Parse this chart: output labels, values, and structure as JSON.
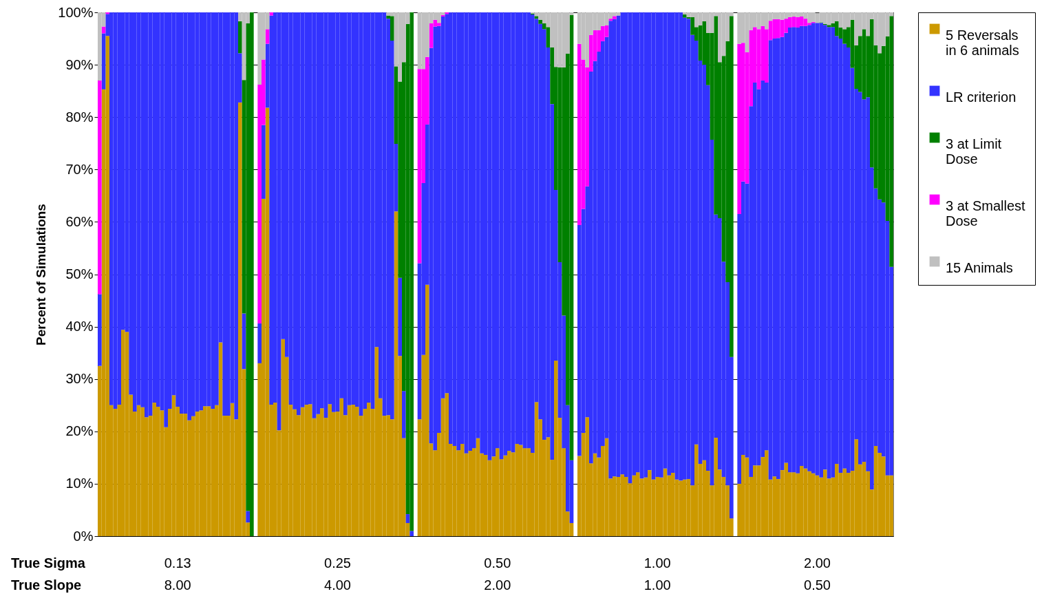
{
  "chart_data": {
    "type": "bar",
    "stacked": true,
    "ylabel": "Percent of Simulations",
    "categories": [
      null,
      null,
      null,
      null,
      null,
      null,
      null,
      null,
      null,
      null,
      null,
      null,
      null,
      null,
      null,
      null,
      null,
      null,
      null,
      null,
      null,
      null,
      null,
      null,
      null,
      null,
      null,
      null,
      null,
      null,
      null,
      null,
      null,
      null,
      null,
      null,
      null,
      null,
      null,
      null,
      null,
      null,
      null,
      null,
      null,
      null,
      null,
      null,
      null,
      null,
      null,
      null,
      null,
      null,
      null,
      null,
      null,
      null,
      null,
      null,
      null,
      null,
      null,
      null,
      null,
      null,
      null,
      null,
      null,
      null,
      null,
      null,
      null,
      null,
      null,
      null,
      null,
      null,
      null,
      null,
      null,
      null,
      null,
      null,
      null,
      null,
      null,
      null,
      null,
      null,
      null,
      null,
      null,
      null,
      null,
      null,
      null,
      null,
      null,
      null,
      null,
      null,
      null,
      null,
      null,
      null,
      null,
      null,
      null,
      null,
      null,
      null,
      null,
      null,
      null,
      null,
      null,
      null,
      null,
      null,
      null,
      null,
      null,
      null,
      null,
      null,
      null,
      null,
      null,
      null,
      null,
      null,
      null,
      null,
      null,
      null,
      null,
      null,
      null,
      null,
      null,
      null,
      null,
      null,
      null,
      null,
      null,
      null,
      null,
      null,
      null,
      null,
      null,
      null,
      null,
      null,
      null,
      null,
      null,
      null,
      null,
      null,
      null,
      null,
      null,
      null,
      null,
      null,
      null,
      null,
      null,
      null,
      null,
      null,
      null,
      null,
      null,
      null,
      null,
      null,
      null,
      null,
      null,
      null,
      null,
      null,
      null,
      null,
      null,
      null,
      null,
      null,
      null,
      null,
      null,
      null,
      null,
      null,
      null,
      null,
      null,
      null,
      null,
      null
    ],
    "series": [
      {
        "name": "5 Reversals in 6 animals",
        "color": "#cc9900",
        "values": [
          32.5,
          85.3,
          95.5,
          25,
          24.3,
          25.1,
          39.4,
          39,
          27,
          23.8,
          25,
          24.6,
          22.7,
          23,
          25.5,
          24.7,
          24,
          20.8,
          24.3,
          26.9,
          24.7,
          23.4,
          23.4,
          22.1,
          22.9,
          23.8,
          24,
          24.8,
          24.8,
          24.3,
          25,
          37,
          23,
          23,
          25.4,
          22.3,
          82.8,
          31.9,
          2.6,
          0,
          null,
          33,
          64.4,
          81.8,
          25.1,
          25.5,
          20.2,
          37.6,
          34.2,
          25.1,
          24.2,
          23.1,
          24.6,
          25.1,
          25.2,
          22.5,
          23.3,
          24.4,
          22.6,
          25.2,
          23.7,
          23.8,
          26.3,
          23.1,
          25,
          25.1,
          24.7,
          23,
          24.3,
          25.5,
          24.3,
          36.1,
          26.3,
          23,
          23.1,
          22.3,
          62,
          34.4,
          18.7,
          2.5,
          0,
          null,
          22.3,
          34.6,
          48,
          17.7,
          16.4,
          19.7,
          26.3,
          27.3,
          17.6,
          17.2,
          16.4,
          17.6,
          15.8,
          16.3,
          16.8,
          18.7,
          15.8,
          15.5,
          14.5,
          15.2,
          16.8,
          14.7,
          15.4,
          16.3,
          16,
          17.6,
          17.4,
          16.8,
          16.8,
          15.9,
          25.6,
          22.3,
          18.4,
          18.9,
          14.6,
          33.5,
          22.6,
          16.8,
          4.7,
          2.5,
          null,
          15.3,
          19.7,
          22.7,
          13.9,
          15.8,
          15,
          17.2,
          18.7,
          11,
          11.4,
          11.3,
          11.8,
          11.3,
          10.1,
          11.6,
          12.2,
          11,
          11.2,
          12.6,
          10.8,
          11.3,
          11.2,
          12.9,
          11.6,
          12.1,
          10.8,
          10.6,
          10.8,
          10.9,
          9.7,
          17.5,
          13.8,
          14.5,
          12.5,
          9.7,
          18.8,
          12.7,
          11.3,
          9.7,
          3.4,
          null,
          10,
          15.5,
          15,
          11.3,
          13.5,
          13.5,
          15.1,
          16.4,
          10.8,
          11.4,
          10.9,
          12.6,
          14,
          12.2,
          12.2,
          12,
          13.4,
          12.9,
          12.4,
          12,
          11.6,
          11.2,
          12.7,
          11,
          11.2,
          13.8,
          12.1,
          12.9,
          12.1,
          12.5,
          18.5,
          13.7,
          14.2,
          12.4,
          8.9,
          17.2,
          15.9,
          15.2,
          11.6,
          11.6
        ]
      },
      {
        "name": "LR criterion",
        "color": "#3333ff",
        "values": [
          13.7,
          10.7,
          4.2,
          75,
          75.7,
          74.9,
          60.6,
          61,
          73,
          76.2,
          75,
          75.4,
          77.3,
          77,
          74.5,
          75.3,
          76,
          79.2,
          75.7,
          73.1,
          75.3,
          76.6,
          76.6,
          77.9,
          77.1,
          76.2,
          76,
          75.2,
          75.2,
          75.7,
          75,
          63,
          77,
          77,
          74.6,
          77.7,
          9.4,
          10.6,
          2.2,
          0,
          null,
          7.6,
          14.1,
          12.2,
          74.3,
          74.5,
          79.8,
          62.4,
          65.8,
          74.9,
          75.8,
          76.9,
          75.4,
          74.9,
          74.8,
          77.5,
          76.7,
          75.6,
          77.4,
          74.8,
          76.3,
          76.2,
          73.7,
          76.9,
          75,
          74.9,
          75.3,
          77,
          75.7,
          74.5,
          75.7,
          63.9,
          73.7,
          77,
          75.7,
          72.3,
          12.9,
          14.9,
          9,
          1.7,
          1,
          null,
          29.8,
          32.8,
          30.6,
          75.5,
          80.9,
          77.7,
          72.9,
          72.4,
          82.4,
          82.8,
          83.6,
          82.4,
          84.2,
          83.7,
          83.2,
          81.3,
          84.2,
          84.5,
          85.5,
          84.8,
          83.2,
          85.3,
          84.6,
          83.7,
          84,
          82.4,
          82.6,
          83.2,
          83.2,
          83.7,
          73.2,
          75.5,
          78.4,
          74.4,
          67.9,
          32.6,
          29.7,
          25.3,
          20.3,
          12,
          null,
          44.1,
          42.8,
          44.1,
          74.8,
          74.9,
          77.5,
          77.3,
          76.6,
          87.4,
          87.3,
          88.1,
          88.2,
          88.7,
          89.9,
          88.4,
          87.8,
          89,
          88.8,
          87.4,
          89.2,
          88.7,
          88.8,
          87.1,
          88.4,
          87.9,
          89.2,
          89.4,
          88.2,
          87.9,
          86,
          77.1,
          77,
          75.5,
          73.6,
          66,
          42.6,
          48,
          41.1,
          38.8,
          30.8,
          null,
          51.5,
          52.2,
          52.3,
          70.8,
          73.1,
          71.8,
          71.9,
          70.2,
          83.9,
          83.6,
          84.2,
          82.7,
          82.1,
          84.9,
          85,
          85.1,
          84,
          84.5,
          85.2,
          86,
          86.4,
          86.8,
          84.9,
          86.2,
          86,
          81.7,
          82.9,
          81.1,
          81.2,
          76.9,
          66.9,
          71.1,
          69.2,
          71.4,
          61.5,
          49.2,
          48.4,
          48.5,
          48.6,
          39.8
        ]
      },
      {
        "name": "3 at Limit Dose",
        "color": "#008000",
        "values": [
          0,
          0,
          0,
          0,
          0,
          0,
          0,
          0,
          0,
          0,
          0,
          0,
          0,
          0,
          0,
          0,
          0,
          0,
          0,
          0,
          0,
          0,
          0,
          0,
          0,
          0,
          0,
          0,
          0,
          0,
          0,
          0,
          0,
          0,
          0,
          0,
          6.1,
          44.6,
          93.1,
          100,
          null,
          0,
          0,
          0,
          0,
          0,
          0,
          0,
          0,
          0,
          0,
          0,
          0,
          0,
          0,
          0,
          0,
          0,
          0,
          0,
          0,
          0,
          0,
          0,
          0,
          0,
          0,
          0,
          0,
          0,
          0,
          0,
          0,
          0,
          0.6,
          4.7,
          14.8,
          37.5,
          62.8,
          93.6,
          99,
          null,
          0,
          0,
          0,
          0,
          0,
          0,
          0,
          0,
          0,
          0,
          0,
          0,
          0,
          0,
          0,
          0,
          0,
          0,
          0,
          0,
          0,
          0,
          0,
          0,
          0,
          0,
          0,
          0,
          0,
          0.2,
          0.5,
          0.8,
          1.1,
          3.9,
          10.8,
          23.5,
          37.2,
          47.4,
          67.1,
          85,
          null,
          0,
          0,
          0,
          0,
          0,
          0,
          0,
          0,
          0,
          0,
          0,
          0,
          0,
          0,
          0,
          0,
          0,
          0,
          0,
          0,
          0,
          0,
          0,
          0,
          0,
          0,
          0,
          0.6,
          0.3,
          3.4,
          2.6,
          6.7,
          8.3,
          10,
          20.4,
          37.9,
          29.8,
          39.3,
          46,
          65.1,
          null,
          0,
          0,
          0,
          0,
          0,
          0,
          0,
          0,
          0,
          0,
          0,
          0,
          0,
          0,
          0,
          0,
          0,
          0,
          0,
          0,
          null,
          0.1,
          0.2,
          0.4,
          0.7,
          2.8,
          2.1,
          2.8,
          3.9,
          9.2,
          8.3,
          10.7,
          13.4,
          11.7,
          28.3,
          27.3,
          27.9,
          29.9,
          35.2,
          47.9
        ]
      },
      {
        "name": "3 at Smallest Dose",
        "color": "#ff00ff",
        "values": [
          40.8,
          1.3,
          0.3,
          0,
          0,
          0,
          0,
          0,
          0,
          0,
          0,
          0,
          0,
          0,
          0,
          0,
          0,
          0,
          0,
          0,
          0,
          0,
          0,
          0,
          0,
          0,
          0,
          0,
          0,
          0,
          0,
          0,
          0,
          0,
          0,
          0,
          0,
          0,
          0,
          0,
          null,
          45.6,
          12.5,
          2.8,
          0.6,
          0,
          0,
          0,
          0,
          0,
          0,
          0,
          0,
          0,
          0,
          0,
          0,
          0,
          0,
          0,
          0,
          0,
          0,
          0,
          0,
          0,
          0,
          0,
          0,
          0,
          0,
          0,
          0,
          0,
          0,
          0,
          0,
          0,
          0,
          0,
          0,
          null,
          37.1,
          21.8,
          12.9,
          4.7,
          1.3,
          0.6,
          0.3,
          0.3,
          0,
          0,
          0,
          0,
          0,
          0,
          0,
          0,
          0,
          0,
          0,
          0,
          0,
          0,
          0,
          0,
          0,
          0,
          0,
          0,
          0,
          0,
          0,
          0,
          0,
          0,
          0,
          0,
          0,
          0,
          0,
          0,
          null,
          34.6,
          28.5,
          22.7,
          7,
          5.9,
          4.1,
          2.9,
          2.2,
          0.4,
          0.6,
          0,
          0,
          0,
          0,
          0,
          0,
          0,
          0,
          0,
          0,
          0,
          0,
          0,
          0,
          0,
          0,
          0,
          0,
          0,
          0,
          0,
          0,
          0,
          0,
          0,
          0,
          0,
          0,
          0,
          0,
          null,
          32.5,
          26.5,
          25.1,
          14.5,
          10.6,
          11.5,
          10.4,
          10.2,
          3.7,
          3.7,
          3.6,
          3.3,
          2.7,
          2,
          2,
          2,
          1.8,
          1.4,
          0.4,
          0.2,
          0,
          0,
          0,
          0,
          0,
          0,
          0,
          0,
          0,
          0,
          0,
          0,
          0,
          0,
          0,
          0,
          0,
          0,
          0,
          0
        ]
      },
      {
        "name": "15 Animals",
        "color": "#c0c0c0",
        "values": [
          13,
          2.7,
          0,
          0,
          0,
          0,
          0,
          0,
          0,
          0,
          0,
          0,
          0,
          0,
          0,
          0,
          0,
          0,
          0,
          0,
          0,
          0,
          0,
          0,
          0,
          0,
          0,
          0,
          0,
          0,
          0,
          0,
          0,
          0,
          0,
          0,
          1.7,
          12.9,
          2.1,
          0,
          null,
          13.8,
          9,
          3.2,
          0,
          0,
          0,
          0,
          0,
          0,
          0,
          0,
          0,
          0,
          0,
          0,
          0,
          0,
          0,
          0,
          0,
          0,
          0,
          0,
          0,
          0,
          0,
          0,
          0,
          0,
          0,
          0,
          0,
          0,
          0.6,
          0.7,
          10.3,
          13.2,
          9.5,
          2.2,
          0,
          null,
          10.8,
          10.8,
          8.5,
          2.1,
          1.4,
          2,
          0.5,
          0,
          0,
          0,
          0,
          0,
          0,
          0,
          0,
          0,
          0,
          0,
          0,
          0,
          0,
          0,
          0,
          0,
          0,
          0,
          0,
          0,
          0,
          0.2,
          0.7,
          1.4,
          2.1,
          2.8,
          6.7,
          10.4,
          10.5,
          10.5,
          7.9,
          0.5,
          null,
          6,
          9,
          10.5,
          4.3,
          3.4,
          3.4,
          2.6,
          2.5,
          1.2,
          0.7,
          0.6,
          0,
          0,
          0,
          0,
          0,
          0,
          0,
          0,
          0,
          0,
          0,
          0,
          0,
          0,
          0,
          0,
          0.4,
          0.9,
          0.9,
          2.8,
          2.5,
          1.7,
          3.9,
          3.9,
          0.7,
          9.5,
          8.3,
          5.5,
          0.7,
          null,
          6,
          5.8,
          7.6,
          3.4,
          2.8,
          3.2,
          2.6,
          3.2,
          1.6,
          1.3,
          1.3,
          1.4,
          1.2,
          0.9,
          0.8,
          0.9,
          0.8,
          1.2,
          2,
          1.8,
          1.9,
          1.9,
          2.2,
          2.4,
          2.1,
          1.7,
          2.9,
          3.2,
          2.8,
          1.4,
          6.3,
          4.5,
          3.2,
          4.5,
          1.3,
          6.3,
          7.8,
          6.4,
          4.6,
          0.7
        ]
      }
    ],
    "ylim": [
      0,
      100
    ],
    "yticks": [
      {
        "value": 0,
        "label": "0%"
      },
      {
        "value": 10,
        "label": "10%"
      },
      {
        "value": 20,
        "label": "20%"
      },
      {
        "value": 30,
        "label": "30%"
      },
      {
        "value": 40,
        "label": "40%"
      },
      {
        "value": 50,
        "label": "50%"
      },
      {
        "value": 60,
        "label": "60%"
      },
      {
        "value": 70,
        "label": "70%"
      },
      {
        "value": 80,
        "label": "80%"
      },
      {
        "value": 90,
        "label": "90%"
      },
      {
        "value": 100,
        "label": "100%"
      }
    ],
    "grid": "y",
    "legend": "right",
    "annotations": [
      "True Sigma",
      "True Slope",
      "0.13",
      "8.00",
      "0.25",
      "4.00",
      "0.50",
      "2.00",
      "1.00",
      "1.00",
      "2.00",
      "0.50"
    ]
  }
}
